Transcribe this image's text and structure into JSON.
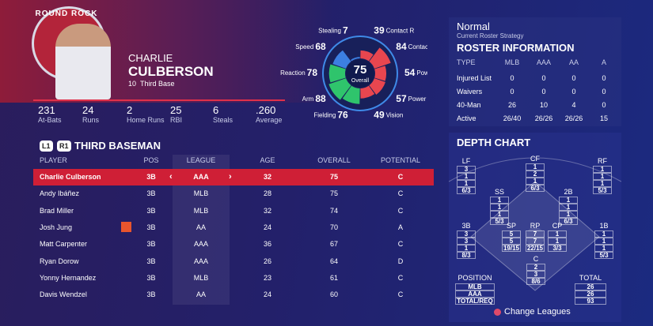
{
  "header": {
    "logo": "ROUND ROCK",
    "first_name": "CHARLIE",
    "last_name": "CULBERSON",
    "number": "10",
    "position": "Third Base"
  },
  "stats": [
    {
      "value": "231",
      "label": "At-Bats"
    },
    {
      "value": "24",
      "label": "Runs"
    },
    {
      "value": "2",
      "label": "Home Runs"
    },
    {
      "value": "25",
      "label": "RBI"
    },
    {
      "value": "6",
      "label": "Steals"
    },
    {
      "value": ".260",
      "label": "Average"
    }
  ],
  "ratings": {
    "overall": 75,
    "overall_label": "Overall",
    "attributes": [
      {
        "name": "Contact R",
        "value": 39,
        "color": "#e8464f"
      },
      {
        "name": "Contact L",
        "value": 84,
        "color": "#e8464f"
      },
      {
        "name": "Power R",
        "value": 54,
        "color": "#e8464f"
      },
      {
        "name": "Power L",
        "value": 57,
        "color": "#e8464f"
      },
      {
        "name": "Vision",
        "value": 49,
        "color": "#e8464f"
      },
      {
        "name": "Fielding",
        "value": 76,
        "color": "#2fc46c"
      },
      {
        "name": "Arm",
        "value": 88,
        "color": "#2fc46c"
      },
      {
        "name": "Reaction",
        "value": 78,
        "color": "#2fc46c"
      },
      {
        "name": "Speed",
        "value": 68,
        "color": "#3c7fe2"
      },
      {
        "name": "Stealing",
        "value": 7,
        "color": "#3c7fe2"
      }
    ]
  },
  "lineup": {
    "buttons": [
      "L1",
      "R1"
    ],
    "title": "THIRD BASEMAN",
    "columns": [
      "PLAYER",
      "POS",
      "LEAGUE",
      "AGE",
      "OVERALL",
      "POTENTIAL"
    ],
    "rows": [
      [
        "Charlie Culberson",
        "3B",
        "AAA",
        "32",
        "75",
        "C"
      ],
      [
        "Andy Ibáñez",
        "3B",
        "MLB",
        "28",
        "75",
        "C"
      ],
      [
        "Brad Miller",
        "3B",
        "MLB",
        "32",
        "74",
        "C"
      ],
      [
        "Josh Jung",
        "3B",
        "AA",
        "24",
        "70",
        "A"
      ],
      [
        "Matt Carpenter",
        "3B",
        "AAA",
        "36",
        "67",
        "C"
      ],
      [
        "Ryan Dorow",
        "3B",
        "AAA",
        "26",
        "64",
        "D"
      ],
      [
        "Yonny Hernandez",
        "3B",
        "MLB",
        "23",
        "61",
        "C"
      ],
      [
        "Davis Wendzel",
        "3B",
        "AA",
        "24",
        "60",
        "C"
      ]
    ]
  },
  "strategy": {
    "name": "Normal",
    "label": "Current Roster Strategy"
  },
  "roster": {
    "title": "ROSTER INFORMATION",
    "columns": [
      "TYPE",
      "MLB",
      "AAA",
      "AA",
      "A"
    ],
    "rows": [
      [
        "Injured List",
        "0",
        "0",
        "0",
        "0"
      ],
      [
        "Waivers",
        "0",
        "0",
        "0",
        "0"
      ],
      [
        "40-Man",
        "26",
        "10",
        "4",
        "0"
      ],
      [
        "Active",
        "26/40",
        "26/26",
        "26/26",
        "15"
      ]
    ]
  },
  "depth": {
    "title": "DEPTH CHART",
    "positions": [
      {
        "name": "LF",
        "counts": [
          "3",
          "1",
          "1",
          "6/3"
        ]
      },
      {
        "name": "CF",
        "counts": [
          "1",
          "2",
          "1",
          "6/3"
        ]
      },
      {
        "name": "RF",
        "counts": [
          "1",
          "1",
          "1",
          "5/3"
        ]
      },
      {
        "name": "SS",
        "counts": [
          "1",
          "1",
          "1",
          "5/3"
        ]
      },
      {
        "name": "2B",
        "counts": [
          "1",
          "1",
          "1",
          "6/3"
        ]
      },
      {
        "name": "3B",
        "counts": [
          "3",
          "3",
          "1",
          "8/3"
        ]
      },
      {
        "name": "SP",
        "counts": [
          "5",
          "5",
          "19/15"
        ]
      },
      {
        "name": "RP",
        "counts": [
          "7",
          "7",
          "22/15"
        ]
      },
      {
        "name": "CP",
        "counts": [
          "1",
          "1",
          "3/3"
        ]
      },
      {
        "name": "1B",
        "counts": [
          "1",
          "1",
          "1",
          "5/3"
        ]
      },
      {
        "name": "C",
        "counts": [
          "2",
          "3",
          "8/6"
        ]
      }
    ],
    "summary": {
      "position_label": "POSITION",
      "total_label": "TOTAL",
      "rows": [
        {
          "label": "MLB",
          "total": "26"
        },
        {
          "label": "AAA",
          "total": "26"
        },
        {
          "label": "TOTAL/REQ",
          "total": "93"
        }
      ]
    }
  },
  "footer": {
    "action": "Change Leagues"
  }
}
